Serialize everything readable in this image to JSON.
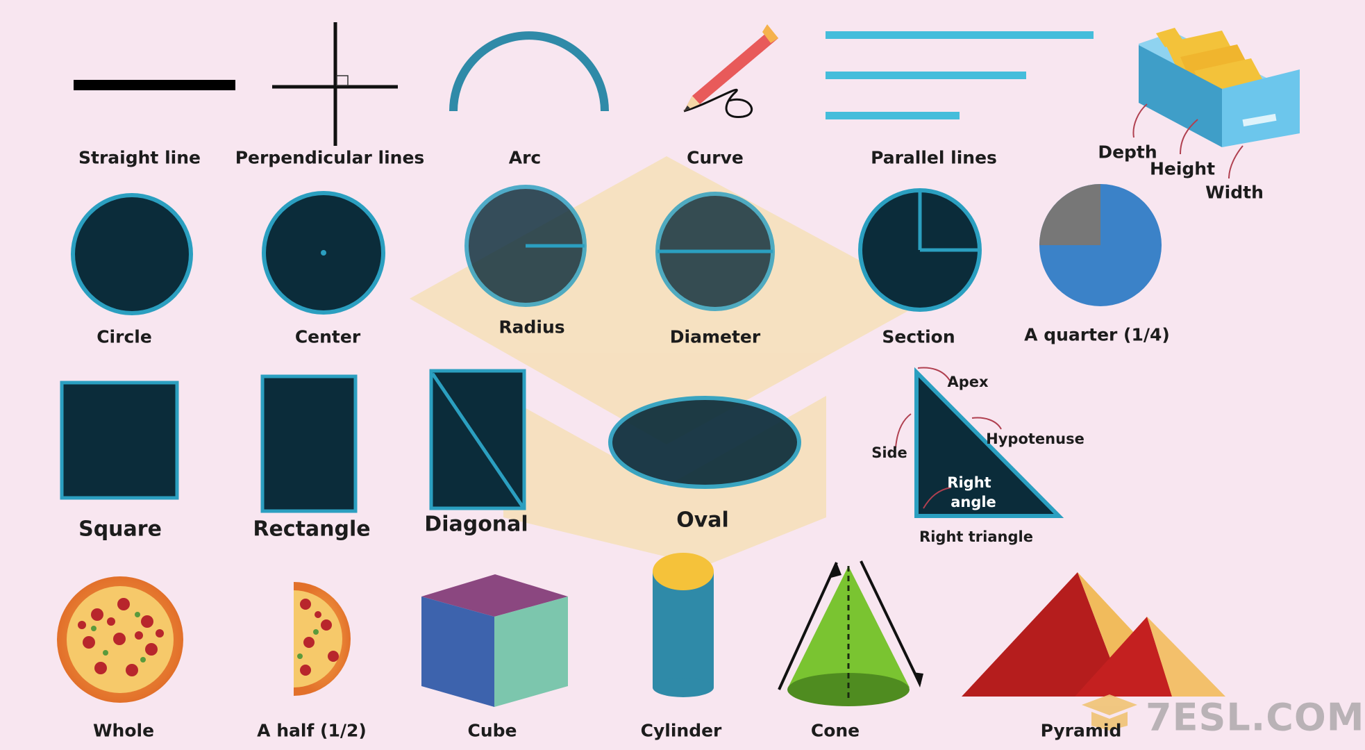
{
  "colors": {
    "background": "#f8e6f0",
    "shape_fill": "#0b2c3a",
    "shape_stroke": "#2b9fc0",
    "line_blue": "#45bddb",
    "arc": "#2f8aa8",
    "watermark": "#f6dfb8",
    "quarter_blue": "#3b82c8",
    "quarter_gray": "#777777"
  },
  "row1": {
    "straight_line": "Straight line",
    "perpendicular_lines": "Perpendicular lines",
    "arc": "Arc",
    "curve": "Curve",
    "parallel_lines": "Parallel lines",
    "depth": "Depth",
    "height": "Height",
    "width": "Width"
  },
  "row2": {
    "circle": "Circle",
    "center": "Center",
    "radius": "Radius",
    "diameter": "Diameter",
    "section": "Section",
    "quarter": "A quarter (1/4)"
  },
  "row3": {
    "square": "Square",
    "rectangle": "Rectangle",
    "diagonal": "Diagonal",
    "oval": "Oval",
    "apex": "Apex",
    "hypotenuse": "Hypotenuse",
    "side": "Side",
    "right_angle_1": "Right",
    "right_angle_2": "angle",
    "right_triangle": "Right triangle"
  },
  "row4": {
    "whole": "Whole",
    "half": "A half (1/2)",
    "cube": "Cube",
    "cylinder": "Cylinder",
    "cone": "Cone",
    "pyramid": "Pyramid"
  },
  "logo": {
    "text": "7ESL.COM"
  }
}
